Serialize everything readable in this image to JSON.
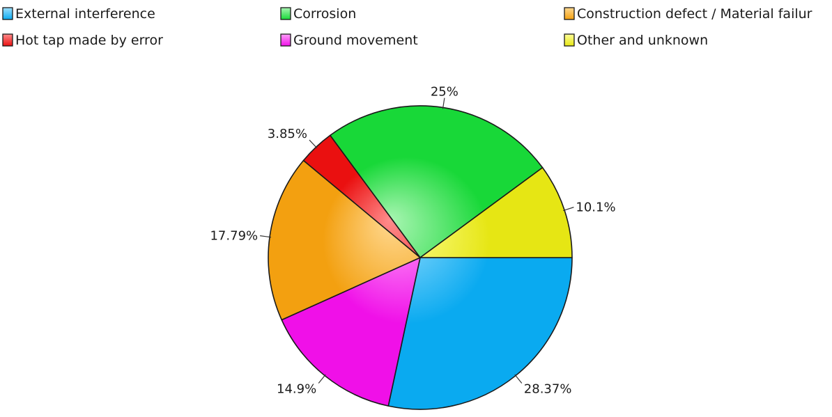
{
  "chart_data": {
    "type": "pie",
    "title": "",
    "legend_placement": "top",
    "start_angle_deg": 0,
    "direction": "clockwise",
    "slices": [
      {
        "label": "External interference",
        "value": 28.37,
        "data_label": "28.37%",
        "color": "#0aaaf0",
        "light": "#9ee0ff"
      },
      {
        "label": "Ground movement",
        "value": 14.9,
        "data_label": "14.9%",
        "color": "#f010e8",
        "light": "#ffa0fa"
      },
      {
        "label": "Construction defect / Material failur",
        "value": 17.79,
        "data_label": "17.79%",
        "color": "#f3a010",
        "light": "#ffd890"
      },
      {
        "label": "Hot tap made by error",
        "value": 3.85,
        "data_label": "3.85%",
        "color": "#ea1010",
        "light": "#ff8c8c"
      },
      {
        "label": "Corrosion",
        "value": 25,
        "data_label": "25%",
        "color": "#18d838",
        "light": "#a8f5b2"
      },
      {
        "label": "Other and unknown",
        "value": 10.1,
        "data_label": "10.1%",
        "color": "#e6e614",
        "light": "#ffff9a"
      }
    ],
    "legend_order": [
      "External interference",
      "Corrosion",
      "Construction defect / Material failur",
      "Hot tap made by error",
      "Ground movement",
      "Other and unknown"
    ]
  }
}
